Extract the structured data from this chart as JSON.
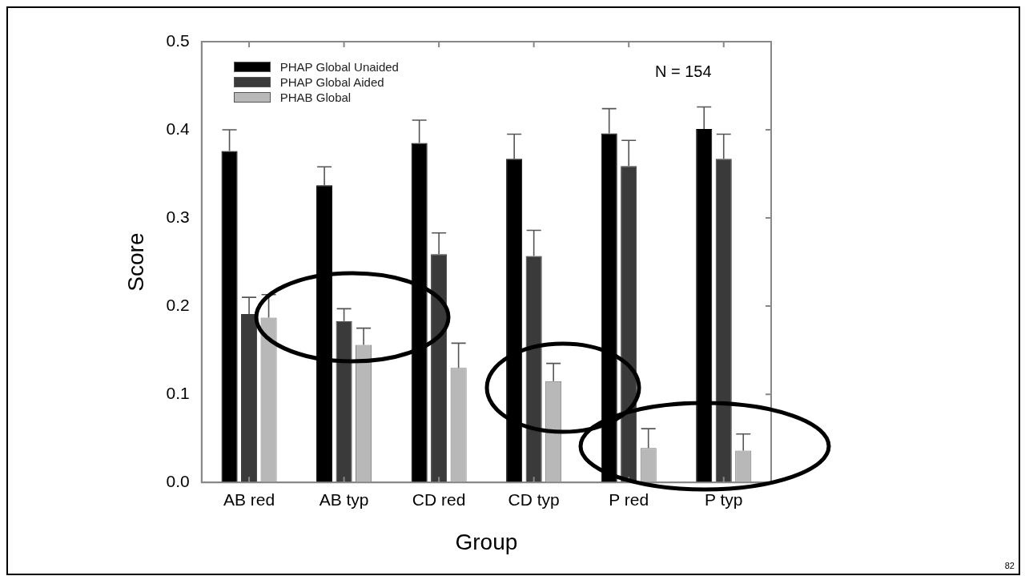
{
  "chart_data": {
    "type": "bar",
    "xlabel": "Group",
    "ylabel": "Score",
    "categories": [
      "AB red",
      "AB typ",
      "CD red",
      "CD typ",
      "P red",
      "P typ"
    ],
    "series": [
      {
        "name": "PHAP Global Unaided",
        "color": "#000000",
        "values": [
          0.376,
          0.337,
          0.385,
          0.367,
          0.396,
          0.401
        ],
        "errors": [
          [
            0.376,
            0.4
          ],
          [
            0.337,
            0.358
          ],
          [
            0.385,
            0.411
          ],
          [
            0.367,
            0.395
          ],
          [
            0.396,
            0.424
          ],
          [
            0.401,
            0.426
          ]
        ]
      },
      {
        "name": "PHAP Global Aided",
        "color": "#3a3a3a",
        "values": [
          0.191,
          0.183,
          0.259,
          0.257,
          0.359,
          0.367
        ],
        "errors": [
          [
            0.191,
            0.21
          ],
          [
            0.183,
            0.197
          ],
          [
            0.259,
            0.283
          ],
          [
            0.257,
            0.286
          ],
          [
            0.359,
            0.388
          ],
          [
            0.367,
            0.395
          ]
        ]
      },
      {
        "name": "PHAB Global",
        "color": "#b8b8b8",
        "values": [
          0.187,
          0.156,
          0.13,
          0.115,
          0.039,
          0.036
        ],
        "errors": [
          [
            0.187,
            0.213
          ],
          [
            0.156,
            0.175
          ],
          [
            0.13,
            0.158
          ],
          [
            0.115,
            0.135
          ],
          [
            0.039,
            0.061
          ],
          [
            0.036,
            0.055
          ]
        ]
      }
    ],
    "ylim": [
      0,
      0.5
    ],
    "yticks": [
      {
        "value": 0,
        "label": "0.0"
      },
      0.1,
      0.2,
      0.3,
      0.4,
      0.5
    ],
    "grid": false,
    "legend": "top left",
    "annotations": [
      "N = 154",
      "82"
    ]
  }
}
